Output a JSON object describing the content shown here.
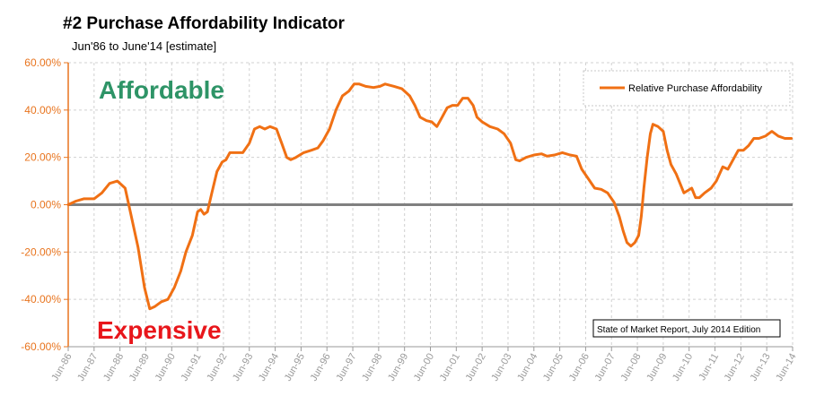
{
  "title": "#2 Purchase Affordability Indicator",
  "subtitle": "Jun'86 to June'14 [estimate]",
  "annotations": {
    "top": "Affordable",
    "bottom": "Expensive",
    "source": "State of Market Report, July 2014 Edition"
  },
  "colors": {
    "series": "#F07014",
    "axis": "#E8741E",
    "zero_line": "#808080",
    "grid": "#D0D0D0",
    "affordable": "#2E9467",
    "expensive": "#E8161B"
  },
  "chart_data": {
    "type": "line",
    "title": "#2 Purchase Affordability Indicator",
    "subtitle": "Jun'86 to June'14 [estimate]",
    "xlabel": "",
    "ylabel": "",
    "ylim": [
      -60,
      60
    ],
    "yticks": [
      "60.00%",
      "40.00%",
      "20.00%",
      "0.00%",
      "-20.00%",
      "-40.00%",
      "-60.00%"
    ],
    "ytick_values": [
      60,
      40,
      20,
      0,
      -20,
      -40,
      -60
    ],
    "xticks": [
      "Jun-86",
      "Jun-87",
      "Jun-88",
      "Jun-89",
      "Jun-90",
      "Jun-91",
      "Jun-92",
      "Jun-93",
      "Jun-94",
      "Jun-95",
      "Jun-96",
      "Jun-97",
      "Jun-98",
      "Jun-99",
      "Jun-00",
      "Jun-01",
      "Jun-02",
      "Jun-03",
      "Jun-04",
      "Jun-05",
      "Jun-06",
      "Jun-07",
      "Jun-08",
      "Jun-09",
      "Jun-10",
      "Jun-11",
      "Jun-12",
      "Jun-13",
      "Jun-14"
    ],
    "grid": true,
    "legend_position": "top-right",
    "series": [
      {
        "name": "Relative Purchase Affordability",
        "points": [
          [
            1986.5,
            0
          ],
          [
            1986.8,
            1.5
          ],
          [
            1987.1,
            2.5
          ],
          [
            1987.5,
            2.5
          ],
          [
            1987.8,
            5
          ],
          [
            1988.1,
            9
          ],
          [
            1988.4,
            10
          ],
          [
            1988.7,
            7
          ],
          [
            1988.9,
            -3
          ],
          [
            1989.2,
            -18
          ],
          [
            1989.45,
            -35
          ],
          [
            1989.65,
            -44
          ],
          [
            1989.85,
            -43
          ],
          [
            1990.1,
            -41
          ],
          [
            1990.35,
            -40
          ],
          [
            1990.6,
            -35
          ],
          [
            1990.85,
            -28
          ],
          [
            1991.05,
            -20
          ],
          [
            1991.3,
            -13
          ],
          [
            1991.5,
            -3
          ],
          [
            1991.62,
            -2
          ],
          [
            1991.75,
            -4
          ],
          [
            1991.88,
            -3
          ],
          [
            1992.05,
            5
          ],
          [
            1992.25,
            14
          ],
          [
            1992.45,
            18
          ],
          [
            1992.6,
            19
          ],
          [
            1992.75,
            22
          ],
          [
            1993.0,
            22
          ],
          [
            1993.25,
            22
          ],
          [
            1993.5,
            26
          ],
          [
            1993.7,
            32
          ],
          [
            1993.9,
            33
          ],
          [
            1994.1,
            32
          ],
          [
            1994.3,
            33
          ],
          [
            1994.55,
            32
          ],
          [
            1994.75,
            26
          ],
          [
            1994.95,
            20
          ],
          [
            1995.1,
            19
          ],
          [
            1995.3,
            20
          ],
          [
            1995.6,
            22
          ],
          [
            1995.9,
            23
          ],
          [
            1996.15,
            24
          ],
          [
            1996.35,
            27
          ],
          [
            1996.6,
            32
          ],
          [
            1996.85,
            40
          ],
          [
            1997.1,
            46
          ],
          [
            1997.35,
            48
          ],
          [
            1997.55,
            51
          ],
          [
            1997.75,
            51
          ],
          [
            1998.0,
            50
          ],
          [
            1998.3,
            49.5
          ],
          [
            1998.55,
            50
          ],
          [
            1998.75,
            51
          ],
          [
            1999.1,
            50
          ],
          [
            1999.4,
            49
          ],
          [
            1999.7,
            46
          ],
          [
            1999.9,
            42
          ],
          [
            2000.1,
            37
          ],
          [
            2000.35,
            35.5
          ],
          [
            2000.55,
            35
          ],
          [
            2000.75,
            33
          ],
          [
            2000.95,
            37
          ],
          [
            2001.15,
            41
          ],
          [
            2001.35,
            42
          ],
          [
            2001.55,
            42
          ],
          [
            2001.75,
            45
          ],
          [
            2001.95,
            45
          ],
          [
            2002.15,
            42
          ],
          [
            2002.3,
            37
          ],
          [
            2002.5,
            35
          ],
          [
            2002.8,
            33
          ],
          [
            2003.1,
            32
          ],
          [
            2003.35,
            30
          ],
          [
            2003.6,
            26
          ],
          [
            2003.8,
            19
          ],
          [
            2003.95,
            18.5
          ],
          [
            2004.2,
            20
          ],
          [
            2004.5,
            21
          ],
          [
            2004.8,
            21.5
          ],
          [
            2005.0,
            20.5
          ],
          [
            2005.3,
            21
          ],
          [
            2005.6,
            22
          ],
          [
            2005.9,
            21
          ],
          [
            2006.15,
            20.5
          ],
          [
            2006.35,
            15
          ],
          [
            2006.6,
            11
          ],
          [
            2006.85,
            7
          ],
          [
            2007.1,
            6.5
          ],
          [
            2007.35,
            5
          ],
          [
            2007.6,
            1
          ],
          [
            2007.8,
            -5
          ],
          [
            2007.95,
            -11
          ],
          [
            2008.1,
            -16
          ],
          [
            2008.25,
            -17.5
          ],
          [
            2008.4,
            -16
          ],
          [
            2008.55,
            -13
          ],
          [
            2008.65,
            -5
          ],
          [
            2008.75,
            7
          ],
          [
            2008.88,
            20
          ],
          [
            2009.0,
            30
          ],
          [
            2009.1,
            34
          ],
          [
            2009.3,
            33
          ],
          [
            2009.5,
            31
          ],
          [
            2009.65,
            23
          ],
          [
            2009.8,
            17
          ],
          [
            2010.0,
            13
          ],
          [
            2010.15,
            9
          ],
          [
            2010.3,
            5
          ],
          [
            2010.45,
            6
          ],
          [
            2010.6,
            7
          ],
          [
            2010.75,
            3
          ],
          [
            2010.9,
            3
          ],
          [
            2011.1,
            5
          ],
          [
            2011.35,
            7
          ],
          [
            2011.55,
            10
          ],
          [
            2011.8,
            16
          ],
          [
            2012.0,
            15
          ],
          [
            2012.2,
            19
          ],
          [
            2012.4,
            23
          ],
          [
            2012.6,
            23
          ],
          [
            2012.8,
            25
          ],
          [
            2013.0,
            28
          ],
          [
            2013.2,
            28
          ],
          [
            2013.45,
            29
          ],
          [
            2013.7,
            31
          ],
          [
            2013.95,
            29
          ],
          [
            2014.2,
            28
          ],
          [
            2014.45,
            28
          ]
        ]
      }
    ]
  }
}
